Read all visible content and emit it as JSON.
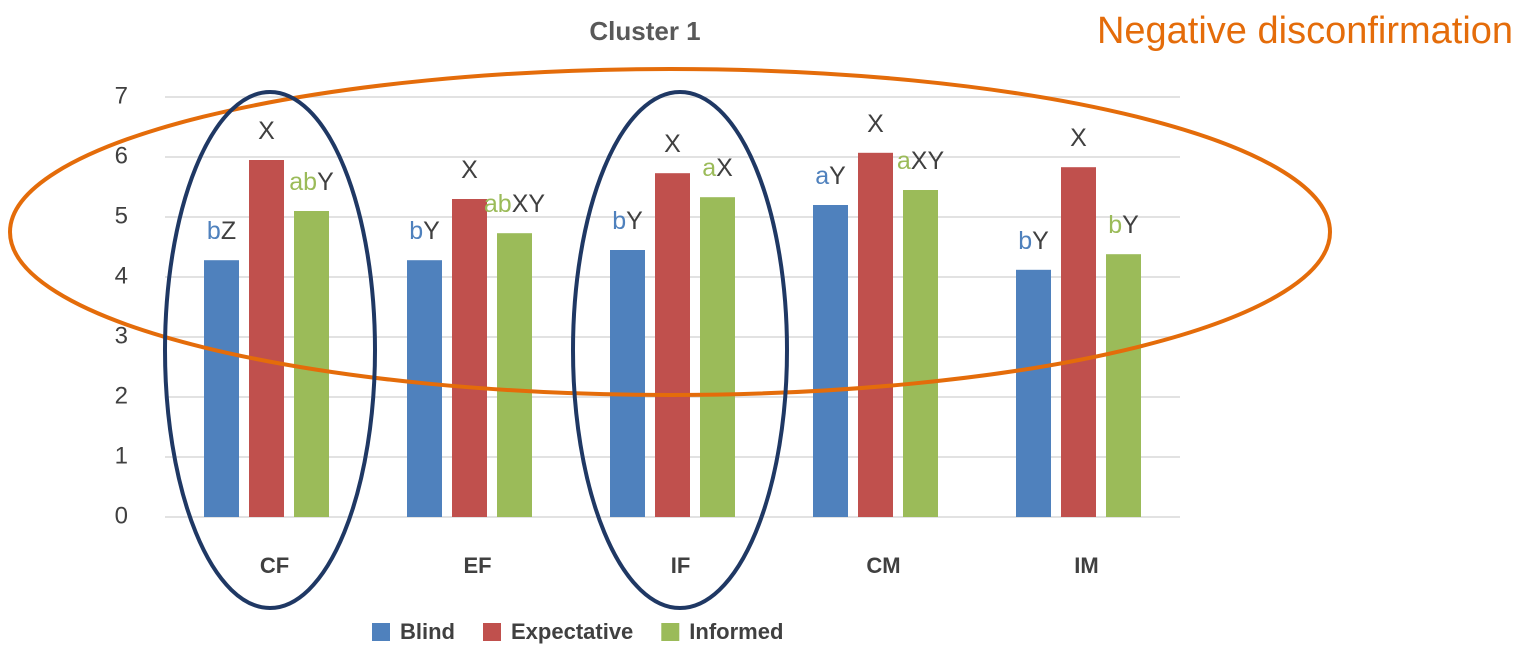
{
  "chart_data": {
    "type": "bar",
    "title": "Cluster 1",
    "annotation": "Negative disconfirmation",
    "categories": [
      "CF",
      "EF",
      "IF",
      "CM",
      "IM"
    ],
    "series": [
      {
        "name": "Blind",
        "color": "#4f81bd",
        "values": [
          4.28,
          4.28,
          4.45,
          5.2,
          4.12
        ],
        "labels": [
          {
            "group": "b",
            "letter": "Z"
          },
          {
            "group": "b",
            "letter": "Y"
          },
          {
            "group": "b",
            "letter": "Y"
          },
          {
            "group": "a",
            "letter": "Y"
          },
          {
            "group": "b",
            "letter": "Y"
          }
        ]
      },
      {
        "name": "Expectative",
        "color": "#c0504d",
        "values": [
          5.95,
          5.3,
          5.73,
          6.07,
          5.83
        ],
        "labels": [
          {
            "letter": "X"
          },
          {
            "letter": "X"
          },
          {
            "letter": "X"
          },
          {
            "letter": "X"
          },
          {
            "letter": "X"
          }
        ]
      },
      {
        "name": "Informed",
        "color": "#9bbb59",
        "values": [
          5.1,
          4.73,
          5.33,
          5.45,
          4.38
        ],
        "labels": [
          {
            "group": "ab",
            "letter": "Y"
          },
          {
            "group": "ab",
            "letter": "XY"
          },
          {
            "group": "a",
            "letter": "X"
          },
          {
            "group": "a",
            "letter": "XY"
          },
          {
            "group": "b",
            "letter": "Y"
          }
        ]
      }
    ],
    "ylim": [
      0,
      7
    ],
    "yticks": [
      0,
      1,
      2,
      3,
      4,
      5,
      6,
      7
    ],
    "grid": true
  }
}
